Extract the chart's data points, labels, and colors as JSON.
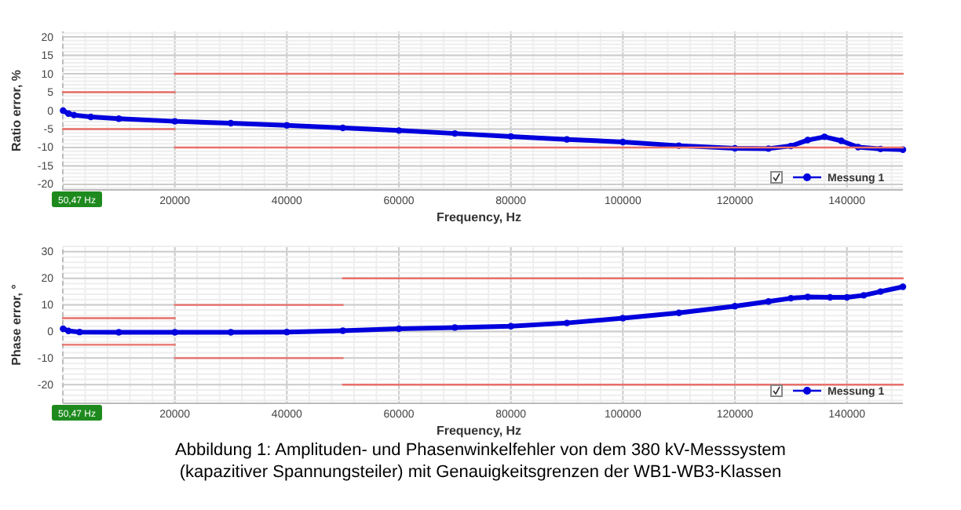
{
  "chart_data": [
    {
      "type": "line",
      "xlabel": "Frequency, Hz",
      "ylabel": "Ratio error, %",
      "xlim": [
        0,
        150000
      ],
      "ylim": [
        -21.5,
        21.5
      ],
      "xticks": [
        20000,
        40000,
        60000,
        80000,
        100000,
        120000,
        140000
      ],
      "yticks": [
        -20,
        -15,
        -10,
        -5,
        0,
        5,
        10,
        15,
        20
      ],
      "grid": true,
      "legend": "bottom right",
      "marker": "circle",
      "annotations": [
        "50,47 Hz"
      ],
      "series": [
        {
          "color": "#e8706a",
          "marker": "none",
          "x": [
            0,
            20000
          ],
          "values": [
            5,
            5
          ]
        },
        {
          "color": "#e8706a",
          "marker": "none",
          "x": [
            0,
            20000
          ],
          "values": [
            -5,
            -5
          ]
        },
        {
          "color": "#e8706a",
          "marker": "none",
          "x": [
            20000,
            50000,
            150000
          ],
          "values": [
            10,
            10,
            10
          ]
        },
        {
          "color": "#e8706a",
          "marker": "none",
          "x": [
            20000,
            50000,
            150000
          ],
          "values": [
            -10,
            -10,
            -10
          ]
        },
        {
          "name": "Messung 1",
          "color": "#0000dd",
          "x": [
            50,
            1000,
            2000,
            5000,
            10000,
            20000,
            30000,
            40000,
            50000,
            60000,
            70000,
            80000,
            90000,
            100000,
            110000,
            120000,
            126000,
            130000,
            133000,
            136000,
            139000,
            142000,
            146000,
            150000
          ],
          "values": [
            0,
            -0.8,
            -1.2,
            -1.7,
            -2.2,
            -2.9,
            -3.4,
            -4.0,
            -4.7,
            -5.4,
            -6.2,
            -7.0,
            -7.8,
            -8.5,
            -9.5,
            -10.2,
            -10.3,
            -9.6,
            -8.0,
            -7.1,
            -8.2,
            -9.9,
            -10.4,
            -10.6
          ]
        }
      ]
    },
    {
      "type": "line",
      "xlabel": "Frequency, Hz",
      "ylabel": "Phase error, °",
      "xlim": [
        0,
        150000
      ],
      "ylim": [
        -27,
        32
      ],
      "xticks": [
        20000,
        40000,
        60000,
        80000,
        100000,
        120000,
        140000
      ],
      "yticks": [
        -20,
        -10,
        0,
        10,
        20,
        30
      ],
      "grid": true,
      "legend": "bottom right",
      "marker": "circle",
      "annotations": [
        "50,47 Hz",
        "Abbildung 1: Amplituden- und Phasenwinkelfehler von dem 380 kV-Messsystem (kapazitiver Spannungsteiler) mit Genauigkeitsgrenzen der WB1-WB3-Klassen"
      ],
      "series": [
        {
          "color": "#e8706a",
          "marker": "none",
          "x": [
            0,
            20000
          ],
          "values": [
            5,
            5
          ]
        },
        {
          "color": "#e8706a",
          "marker": "none",
          "x": [
            0,
            20000
          ],
          "values": [
            -5,
            -5
          ]
        },
        {
          "color": "#e8706a",
          "marker": "none",
          "x": [
            20000,
            50000
          ],
          "values": [
            10,
            10
          ]
        },
        {
          "color": "#e8706a",
          "marker": "none",
          "x": [
            20000,
            50000
          ],
          "values": [
            -10,
            -10
          ]
        },
        {
          "color": "#e8706a",
          "marker": "none",
          "x": [
            50000,
            150000
          ],
          "values": [
            20,
            20
          ]
        },
        {
          "color": "#e8706a",
          "marker": "none",
          "x": [
            50000,
            150000
          ],
          "values": [
            -20,
            -20
          ]
        },
        {
          "name": "Messung 1",
          "color": "#0000dd",
          "x": [
            50,
            1000,
            3000,
            10000,
            20000,
            30000,
            40000,
            50000,
            60000,
            70000,
            80000,
            90000,
            100000,
            110000,
            120000,
            126000,
            130000,
            133000,
            137000,
            140000,
            143000,
            146000,
            150000
          ],
          "values": [
            1.0,
            0.2,
            -0.2,
            -0.3,
            -0.3,
            -0.3,
            -0.2,
            0.3,
            1.0,
            1.5,
            2.0,
            3.2,
            5.0,
            7.0,
            9.5,
            11.3,
            12.5,
            13.0,
            12.8,
            12.8,
            13.6,
            15.0,
            16.8
          ]
        }
      ]
    }
  ]
}
